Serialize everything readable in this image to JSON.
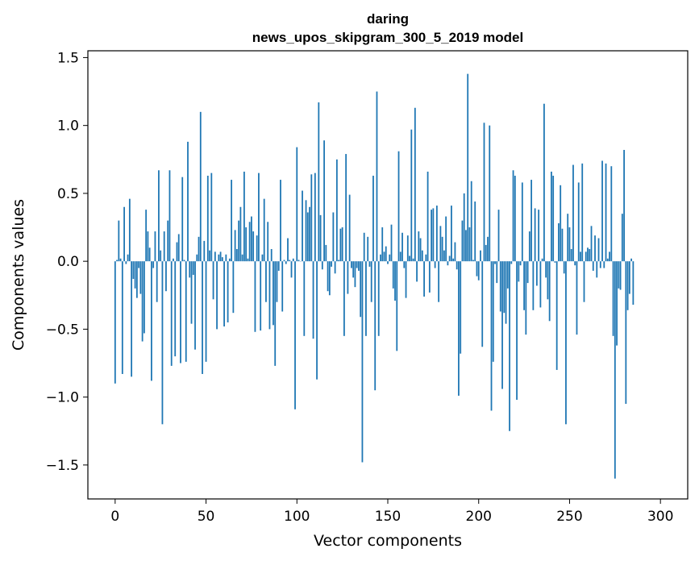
{
  "chart_data": {
    "type": "bar",
    "title": "daring",
    "subtitle": "news_upos_skipgram_300_5_2019 model",
    "xlabel": "Vector components",
    "ylabel": "Components values",
    "xlim": [
      -15,
      315
    ],
    "ylim": [
      -1.75,
      1.55
    ],
    "xticks": [
      0,
      50,
      100,
      150,
      200,
      250,
      300
    ],
    "xtick_labels": [
      "0",
      "50",
      "100",
      "150",
      "200",
      "250",
      "300"
    ],
    "yticks": [
      -1.5,
      -1.0,
      -0.5,
      0.0,
      0.5,
      1.0,
      1.5
    ],
    "ytick_labels": [
      "−1.5",
      "−1.0",
      "−0.5",
      "0.0",
      "0.5",
      "1.0",
      "1.5"
    ],
    "grid": false,
    "bar_color": "#1f77b4",
    "values": [
      -0.9,
      0.01,
      0.3,
      0.02,
      -0.83,
      0.4,
      -0.02,
      0.05,
      0.46,
      -0.85,
      -0.13,
      -0.2,
      -0.27,
      -0.05,
      -0.24,
      -0.59,
      -0.53,
      0.38,
      0.22,
      0.1,
      -0.88,
      -0.05,
      0.22,
      -0.3,
      0.67,
      0.08,
      -1.2,
      0.22,
      -0.22,
      0.3,
      0.67,
      -0.77,
      0.02,
      -0.7,
      0.14,
      0.2,
      -0.75,
      0.62,
      0.01,
      -0.74,
      0.88,
      -0.12,
      -0.46,
      -0.1,
      -0.65,
      0.05,
      0.18,
      1.1,
      -0.83,
      0.15,
      -0.74,
      0.63,
      0.08,
      0.65,
      -0.28,
      0.07,
      -0.5,
      0.05,
      0.07,
      0.03,
      -0.48,
      0.05,
      -0.45,
      0.02,
      0.6,
      -0.38,
      0.23,
      0.09,
      0.3,
      0.4,
      0.05,
      0.66,
      0.25,
      0.02,
      0.29,
      0.33,
      0.22,
      -0.52,
      0.19,
      0.65,
      -0.51,
      0.05,
      0.46,
      -0.3,
      0.29,
      -0.5,
      0.09,
      -0.47,
      -0.77,
      -0.3,
      -0.07,
      0.6,
      -0.37,
      0.01,
      -0.02,
      0.17,
      0.01,
      -0.12,
      0.02,
      -1.09,
      0.84,
      0.01,
      0.0,
      0.52,
      -0.55,
      0.45,
      0.36,
      0.4,
      0.64,
      -0.57,
      0.65,
      -0.87,
      1.17,
      0.34,
      -0.06,
      0.89,
      0.12,
      -0.22,
      -0.25,
      -0.04,
      0.36,
      -0.09,
      0.75,
      0.01,
      0.24,
      0.25,
      -0.55,
      0.79,
      -0.24,
      0.49,
      -0.05,
      -0.12,
      -0.19,
      -0.05,
      -0.07,
      -0.41,
      -1.48,
      0.21,
      -0.55,
      0.18,
      -0.04,
      -0.3,
      0.63,
      -0.95,
      1.25,
      -0.55,
      0.05,
      0.25,
      0.07,
      0.11,
      -0.02,
      0.05,
      0.27,
      -0.2,
      -0.29,
      -0.66,
      0.81,
      0.07,
      0.21,
      -0.05,
      -0.27,
      0.19,
      0.04,
      0.97,
      0.02,
      1.13,
      -0.15,
      0.22,
      0.17,
      0.08,
      -0.26,
      0.05,
      0.66,
      -0.23,
      0.38,
      0.39,
      -0.05,
      0.41,
      -0.3,
      0.26,
      0.18,
      0.08,
      0.33,
      -0.03,
      0.04,
      0.41,
      0.02,
      0.14,
      -0.06,
      -0.99,
      -0.68,
      0.3,
      0.5,
      0.23,
      1.38,
      0.25,
      0.59,
      0.01,
      0.44,
      -0.11,
      -0.14,
      0.08,
      -0.63,
      1.02,
      0.12,
      0.18,
      1.0,
      -1.1,
      -0.74,
      -0.02,
      -0.16,
      0.38,
      -0.37,
      -0.94,
      -0.38,
      -0.46,
      -0.2,
      -1.25,
      -0.02,
      0.67,
      0.63,
      -1.02,
      -0.15,
      -0.03,
      0.58,
      -0.36,
      -0.54,
      -0.16,
      0.22,
      0.6,
      -0.36,
      0.39,
      -0.18,
      0.38,
      -0.34,
      0.02,
      1.16,
      -0.12,
      -0.28,
      -0.44,
      0.66,
      0.63,
      -0.01,
      -0.8,
      0.28,
      0.56,
      0.24,
      -0.09,
      -1.2,
      0.35,
      0.25,
      0.09,
      0.71,
      -0.03,
      -0.54,
      0.58,
      0.07,
      0.72,
      -0.3,
      0.07,
      0.1,
      0.09,
      0.26,
      -0.07,
      0.19,
      -0.12,
      0.17,
      -0.05,
      0.74,
      -0.05,
      0.72,
      0.02,
      0.07,
      0.7,
      -0.55,
      -1.6,
      -0.62,
      -0.2,
      -0.21,
      0.35,
      0.82,
      -1.05,
      -0.36,
      -0.24,
      0.02,
      -0.32
    ]
  }
}
